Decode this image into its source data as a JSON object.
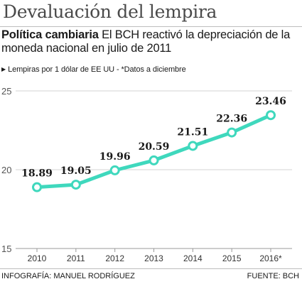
{
  "title": "Devaluación del lempira",
  "subtitle": {
    "lead": "Política cambiaria",
    "text": "El BCH reactivó la depreciación de la moneda nacional en julio de 2011"
  },
  "note": "Lempiras por 1 dólar de EE UU - *Datos a diciembre",
  "credit": "INFOGRAFÍA: MANUEL RODRÍGUEZ",
  "source": "FUENTE: BCH",
  "colors": {
    "line": "#3fd8bd",
    "grid": "#d3d3d3",
    "text": "#1a1a1a"
  },
  "chart_data": {
    "type": "line",
    "title": "",
    "xlabel": "",
    "ylabel": "",
    "categories": [
      "2010",
      "2011",
      "2012",
      "2013",
      "2014",
      "2015",
      "2016*"
    ],
    "values": [
      18.89,
      19.05,
      19.96,
      20.59,
      21.51,
      22.36,
      23.46
    ],
    "data_labels": [
      "18.89",
      "19.05",
      "19.96",
      "20.59",
      "21.51",
      "22.36",
      "23.46"
    ],
    "yticks": [
      "15",
      "20",
      "25"
    ],
    "ylim": [
      15,
      25
    ],
    "grid": true,
    "legend": "none"
  }
}
